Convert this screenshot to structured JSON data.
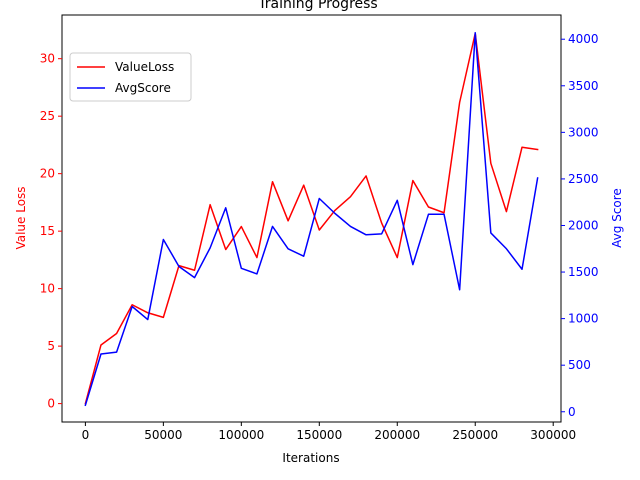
{
  "chart_data": {
    "type": "line",
    "title": "Training Progress",
    "xlabel": "Iterations",
    "ylabel_left": "Value Loss",
    "ylabel_right": "Avg Score",
    "xlim": [
      -15000,
      305000
    ],
    "ylim_left": [
      -1.6,
      33.8
    ],
    "ylim_right": [
      -110,
      4260
    ],
    "x_ticks": [
      0,
      50000,
      100000,
      150000,
      200000,
      250000,
      300000
    ],
    "y_ticks_left": [
      0,
      5,
      10,
      15,
      20,
      25,
      30
    ],
    "y_ticks_right": [
      0,
      500,
      1000,
      1500,
      2000,
      2500,
      3000,
      3500,
      4000
    ],
    "grid": false,
    "legend_position": "upper-left",
    "colors": {
      "left_axis": "#ff0000",
      "right_axis": "#0000ff"
    },
    "x": [
      0,
      10000,
      20000,
      30000,
      40000,
      50000,
      60000,
      70000,
      80000,
      90000,
      100000,
      110000,
      120000,
      130000,
      140000,
      150000,
      160000,
      170000,
      180000,
      190000,
      200000,
      210000,
      220000,
      230000,
      240000,
      250000,
      260000,
      270000,
      280000,
      290000
    ],
    "series": [
      {
        "name": "ValueLoss",
        "axis": "left",
        "color": "#ff0000",
        "values": [
          0.0,
          5.1,
          6.1,
          8.6,
          7.9,
          7.5,
          12.0,
          11.6,
          17.3,
          13.4,
          15.4,
          12.7,
          19.3,
          15.9,
          19.0,
          15.1,
          16.8,
          18.0,
          19.8,
          15.7,
          12.7,
          19.4,
          17.1,
          16.6,
          26.2,
          32.2,
          20.9,
          16.7,
          22.3,
          22.1
        ]
      },
      {
        "name": "AvgScore",
        "axis": "right",
        "color": "#0000ff",
        "values": [
          70,
          620,
          640,
          1130,
          990,
          1850,
          1560,
          1440,
          1760,
          2190,
          1540,
          1480,
          1990,
          1750,
          1670,
          2290,
          2130,
          1990,
          1900,
          1910,
          2270,
          1580,
          2120,
          2120,
          1310,
          4070,
          1920,
          1750,
          1530,
          2510
        ]
      }
    ]
  }
}
